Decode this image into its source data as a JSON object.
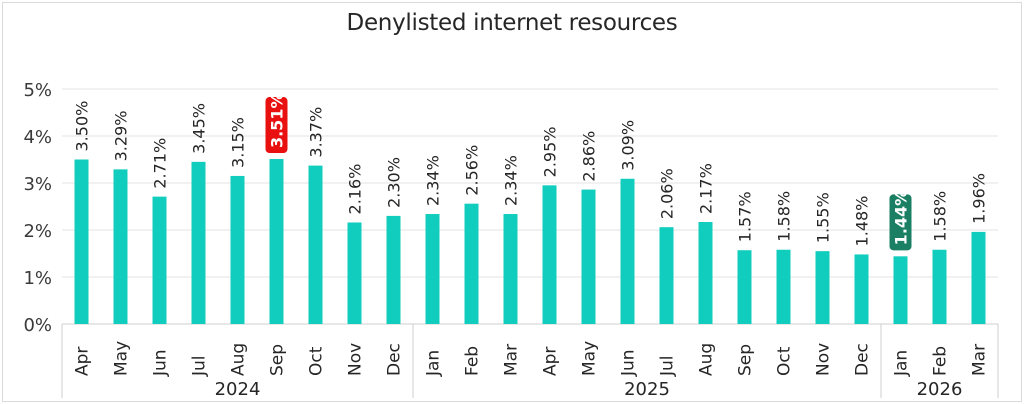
{
  "chart_data": {
    "type": "bar",
    "title": "Denylisted internet resources",
    "xlabel": "",
    "ylabel": "",
    "ylim": [
      0,
      5
    ],
    "yticks": [
      "0%",
      "1%",
      "2%",
      "3%",
      "4%",
      "5%"
    ],
    "grid": true,
    "bar_color": "#10cdbd",
    "max_highlight_color": "#e8110f",
    "min_highlight_color": "#1a7f63",
    "categories": [
      "Apr",
      "May",
      "Jun",
      "Jul",
      "Aug",
      "Sep",
      "Oct",
      "Nov",
      "Dec",
      "Jan",
      "Feb",
      "Mar",
      "Apr",
      "May",
      "Jun",
      "Jul",
      "Aug",
      "Sep",
      "Oct",
      "Nov",
      "Dec",
      "Jan",
      "Feb",
      "Mar"
    ],
    "values": [
      3.5,
      3.29,
      2.71,
      3.45,
      3.15,
      3.51,
      3.37,
      2.16,
      2.3,
      2.34,
      2.56,
      2.34,
      2.95,
      2.86,
      3.09,
      2.06,
      2.17,
      1.57,
      1.58,
      1.55,
      1.48,
      1.44,
      1.58,
      1.96
    ],
    "labels": [
      "3.50%",
      "3.29%",
      "2.71%",
      "3.45%",
      "3.15%",
      "3.51%",
      "3.37%",
      "2.16%",
      "2.30%",
      "2.34%",
      "2.56%",
      "2.34%",
      "2.95%",
      "2.86%",
      "3.09%",
      "2.06%",
      "2.17%",
      "1.57%",
      "1.58%",
      "1.55%",
      "1.48%",
      "1.44%",
      "1.58%",
      "1.96%"
    ],
    "highlight_max_index": 5,
    "highlight_min_index": 21,
    "year_groups": [
      {
        "label": "2024",
        "count": 9
      },
      {
        "label": "2025",
        "count": 12
      },
      {
        "label": "2026",
        "count": 3
      }
    ]
  }
}
